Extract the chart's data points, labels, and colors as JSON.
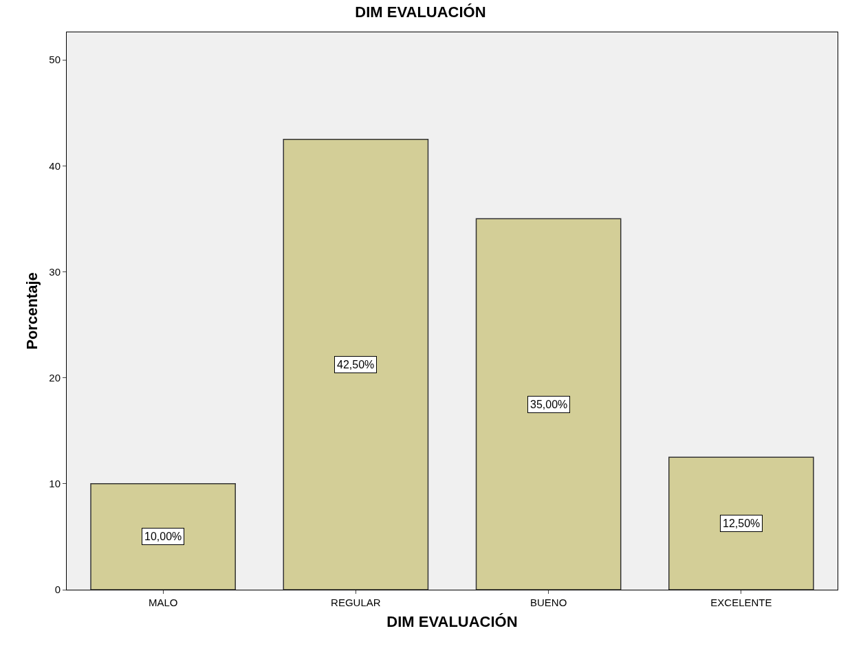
{
  "chart_data": {
    "type": "bar",
    "title": "DIM EVALUACIÓN",
    "xlabel": "DIM EVALUACIÓN",
    "ylabel": "Porcentaje",
    "categories": [
      "MALO",
      "REGULAR",
      "BUENO",
      "EXCELENTE"
    ],
    "values": [
      10,
      42.5,
      35,
      12.5
    ],
    "value_labels": [
      "10,00%",
      "42,50%",
      "35,00%",
      "12,50%"
    ],
    "color": "#d3ce97",
    "ylim": [
      0,
      52.6
    ],
    "yticks": [
      0,
      10,
      20,
      30,
      40,
      50
    ],
    "grid": false
  }
}
